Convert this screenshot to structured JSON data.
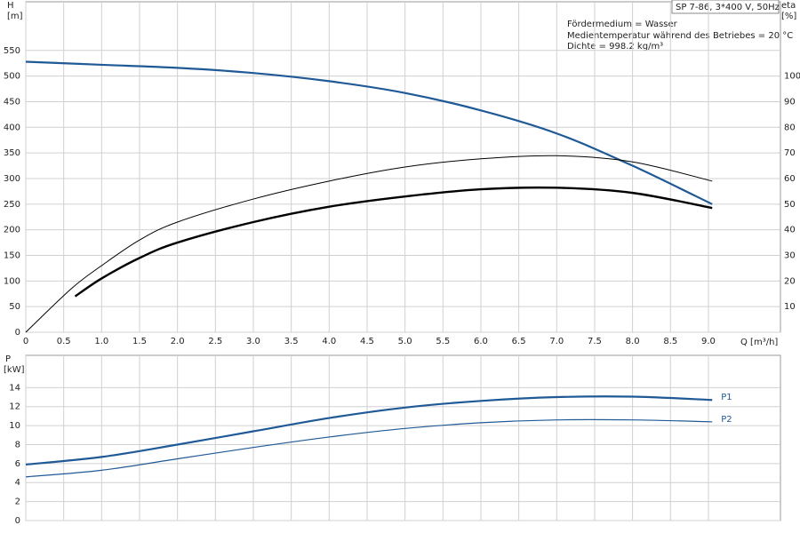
{
  "chart_data": [
    {
      "type": "line",
      "y_label": "H",
      "y_unit": "[m]",
      "y2_label": "eta",
      "y2_unit": "[%]",
      "x_label": "Q [m³/h]",
      "annotations": [
        "SP 7-86, 3*400 V, 50Hz",
        "Fördermedium = Wasser",
        "Medientemperatur während des Betriebes = 20 °C",
        "Dichte = 998.2 kg/m³"
      ],
      "xlim": [
        0,
        9.95
      ],
      "ylim": [
        0,
        645
      ],
      "y2lim": [
        0,
        129
      ],
      "grid": true,
      "xticks": [
        0,
        0.5,
        {
          "value": 1,
          "label": "1.0"
        },
        1.5,
        {
          "value": 2,
          "label": "2.0"
        },
        2.5,
        {
          "value": 3,
          "label": "3.0"
        },
        3.5,
        {
          "value": 4,
          "label": "4.0"
        },
        4.5,
        {
          "value": 5,
          "label": "5.0"
        },
        5.5,
        {
          "value": 6,
          "label": "6.0"
        },
        6.5,
        {
          "value": 7,
          "label": "7.0"
        },
        7.5,
        {
          "value": 8,
          "label": "8.0"
        },
        8.5,
        {
          "value": 9,
          "label": "9.0"
        }
      ],
      "yticks": [
        0,
        50,
        100,
        150,
        200,
        250,
        300,
        350,
        400,
        450,
        500,
        550
      ],
      "y2ticks": [
        10,
        20,
        30,
        40,
        50,
        60,
        70,
        80,
        90,
        100
      ],
      "series": [
        {
          "color": "#1f5a96",
          "width": 2.2,
          "x": [
            0,
            1,
            2,
            3,
            4,
            5,
            6,
            7,
            8,
            9.05
          ],
          "values": [
            528,
            522,
            516,
            506,
            490,
            467,
            433,
            388,
            325,
            250
          ]
        },
        {
          "color": "#000000",
          "width": 1,
          "axis": "y2",
          "x": [
            0,
            0.6,
            1,
            1.5,
            2,
            3,
            4,
            5,
            6,
            7,
            8,
            9.05
          ],
          "values": [
            0,
            17,
            26,
            36,
            43,
            52,
            59,
            64.5,
            67.7,
            68.9,
            66.5,
            59
          ]
        },
        {
          "color": "#000000",
          "width": 2.4,
          "axis": "y2",
          "x": [
            0.65,
            1,
            1.5,
            2,
            3,
            4,
            5,
            6,
            7,
            8,
            9.05
          ],
          "values": [
            14,
            21,
            29,
            35,
            43,
            49,
            53,
            55.8,
            56.4,
            54.4,
            48.5
          ]
        }
      ]
    },
    {
      "type": "line",
      "y_label": "P",
      "y_unit": "[kW]",
      "xlim": [
        0,
        9.95
      ],
      "ylim": [
        0,
        17.4
      ],
      "grid": true,
      "yticks": [
        0,
        2,
        4,
        6,
        8,
        10,
        12,
        14
      ],
      "series": [
        {
          "name": "P1",
          "color": "#1f5a96",
          "width": 2.2,
          "x": [
            0,
            1,
            2,
            3,
            4,
            5,
            6,
            7,
            8,
            9.05
          ],
          "values": [
            5.9,
            6.7,
            8.0,
            9.4,
            10.8,
            11.9,
            12.6,
            13.0,
            13.05,
            12.7
          ]
        },
        {
          "name": "P2",
          "color": "#1f5a96",
          "width": 1.2,
          "x": [
            0,
            1,
            2,
            3,
            4,
            5,
            6,
            7,
            8,
            9.05
          ],
          "values": [
            4.6,
            5.3,
            6.5,
            7.7,
            8.8,
            9.7,
            10.3,
            10.6,
            10.6,
            10.4
          ]
        }
      ]
    }
  ]
}
